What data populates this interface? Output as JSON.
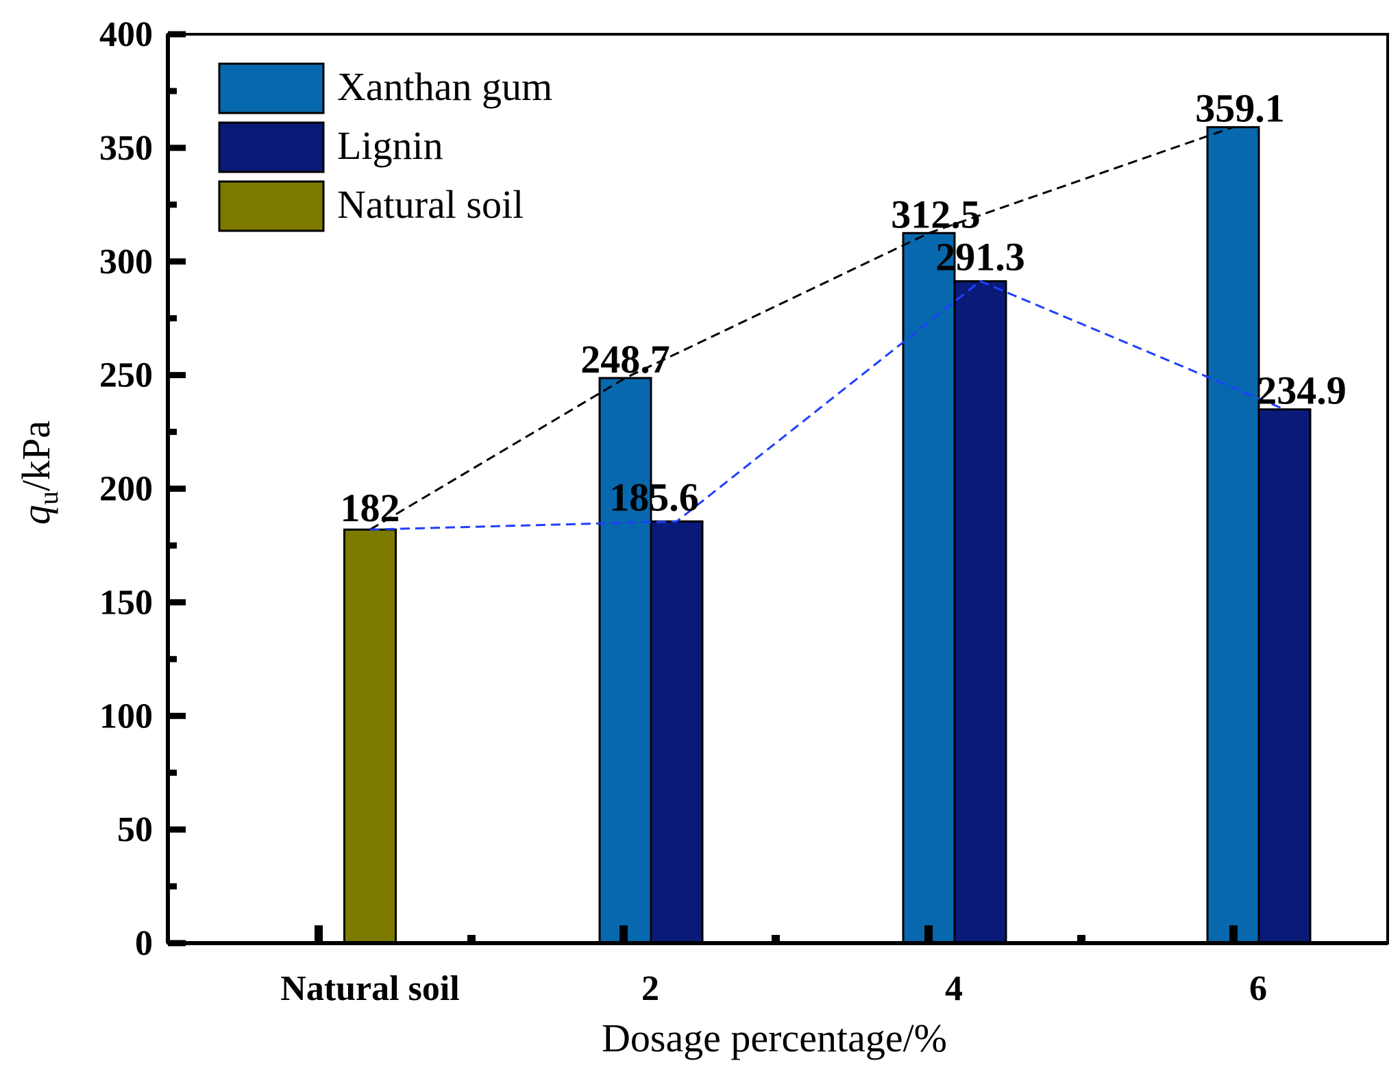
{
  "chart_data": {
    "type": "bar",
    "title": "",
    "xlabel": "Dosage percentage/%",
    "ylabel": {
      "symbol": "q",
      "subscript": "u",
      "unit": "/kPa"
    },
    "ylim": [
      0,
      400
    ],
    "yticks": [
      "0",
      "50",
      "100",
      "150",
      "200",
      "250",
      "300",
      "350",
      "400"
    ],
    "categories": [
      "Natural soil",
      "2",
      "4",
      "6"
    ],
    "series": [
      {
        "name": "Xanthan gum",
        "color": "#0768ad",
        "values": [
          null,
          248.7,
          312.5,
          359.1
        ],
        "labels": [
          null,
          "248.7",
          "312.5",
          "359.1"
        ]
      },
      {
        "name": "Lignin",
        "color": "#0a1a78",
        "values": [
          null,
          185.6,
          291.3,
          234.9
        ],
        "labels": [
          null,
          "185.6",
          "291.3",
          "234.9"
        ]
      },
      {
        "name": "Natural soil",
        "color": "#7d7a00",
        "values": [
          182,
          null,
          null,
          null
        ],
        "labels": [
          "182",
          null,
          null,
          null
        ]
      }
    ],
    "trend_lines": [
      {
        "name": "Xanthan gum trend",
        "color": "#000000",
        "style": "dashed",
        "points": [
          182,
          248.7,
          312.5,
          359.1
        ]
      },
      {
        "name": "Lignin trend",
        "color": "#1f3fff",
        "style": "dashed",
        "points": [
          182,
          185.6,
          291.3,
          234.9
        ]
      }
    ],
    "legend": {
      "placement": "top-left",
      "entries": [
        "Xanthan gum",
        "Lignin",
        "Natural soil"
      ]
    }
  }
}
